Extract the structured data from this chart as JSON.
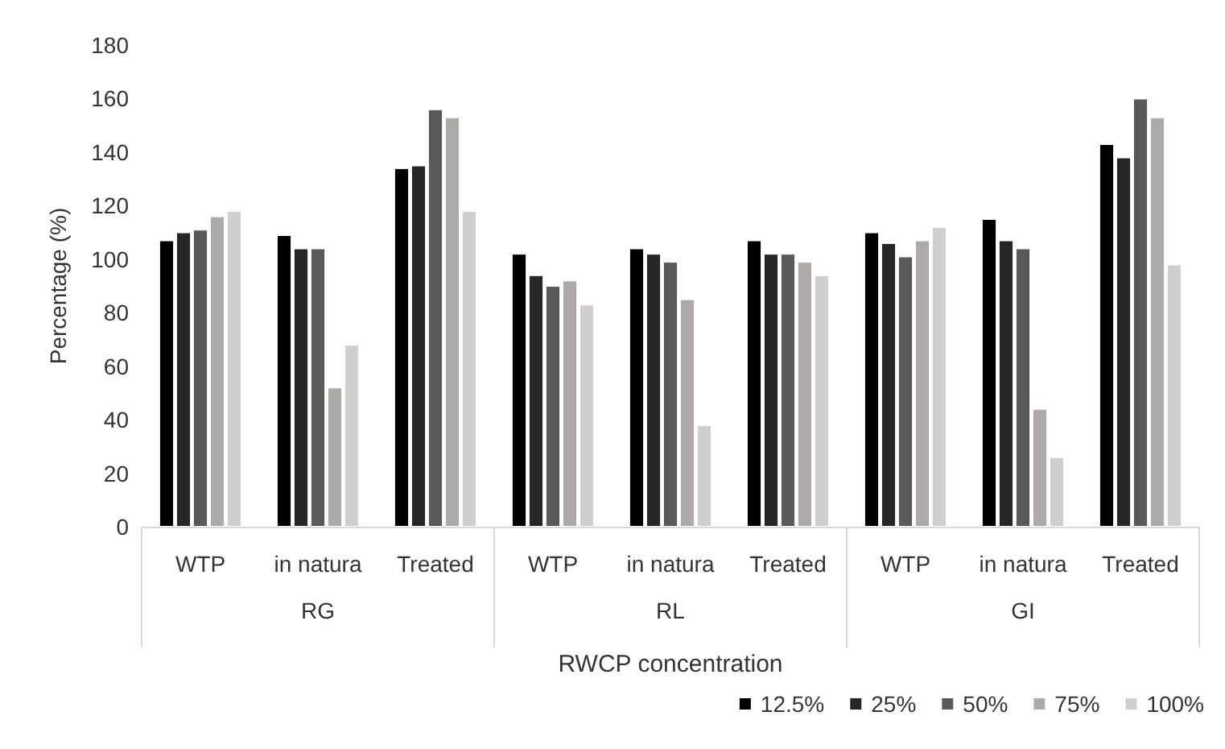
{
  "chart_data": {
    "type": "bar",
    "xlabel": "RWCP concentration",
    "ylabel": "Percentage (%)",
    "categories": [
      "WTP",
      "in natura",
      "Treated",
      "WTP",
      "in natura",
      "Treated",
      "WTP",
      "in natura",
      "Treated"
    ],
    "annotations": [
      "RG",
      "RL",
      "GI"
    ],
    "series": [
      {
        "name": "12.5%",
        "color": "#000000",
        "values": [
          107,
          109,
          134,
          102,
          104,
          107,
          110,
          115,
          143
        ]
      },
      {
        "name": "25%",
        "color": "#262626",
        "values": [
          110,
          104,
          135,
          94,
          102,
          102,
          106,
          107,
          138
        ]
      },
      {
        "name": "50%",
        "color": "#595959",
        "values": [
          111,
          104,
          156,
          90,
          99,
          102,
          101,
          104,
          160
        ]
      },
      {
        "name": "75%",
        "color": "#aeaaaa",
        "values": [
          116,
          52,
          153,
          92,
          85,
          99,
          107,
          44,
          153
        ]
      },
      {
        "name": "100%",
        "color": "#d0cece",
        "values": [
          118,
          68,
          118,
          83,
          38,
          94,
          112,
          26,
          98
        ]
      }
    ],
    "ylim": [
      0,
      180
    ],
    "yticks": [
      0,
      20,
      40,
      60,
      80,
      100,
      120,
      140,
      160,
      180
    ],
    "grid": false,
    "legend": "bottom right"
  }
}
